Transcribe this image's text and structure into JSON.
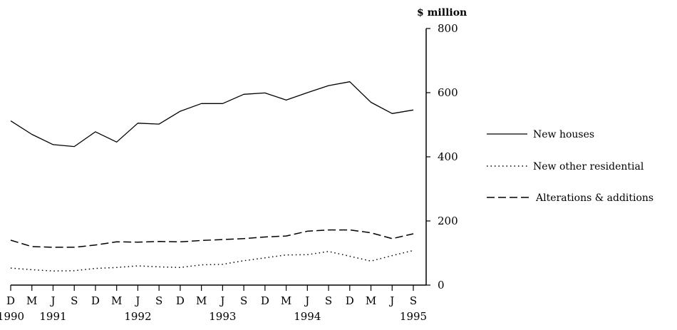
{
  "chart_data": {
    "type": "line",
    "ylabel": "$ million",
    "ylim": [
      0,
      800
    ],
    "yticks": [
      "0",
      "200",
      "400",
      "600",
      "800"
    ],
    "categories": [
      "D",
      "M",
      "J",
      "S",
      "D",
      "M",
      "J",
      "S",
      "D",
      "M",
      "J",
      "S",
      "D",
      "M",
      "J",
      "S",
      "D",
      "M",
      "J",
      "S"
    ],
    "year_labels": [
      {
        "index": 0,
        "label": "1990"
      },
      {
        "index": 2,
        "label": "1991"
      },
      {
        "index": 6,
        "label": "1992"
      },
      {
        "index": 10,
        "label": "1993"
      },
      {
        "index": 14,
        "label": "1994"
      },
      {
        "index": 19,
        "label": "1995"
      }
    ],
    "grid": false,
    "legend_position": "right",
    "series": [
      {
        "name": "New houses",
        "style": "solid",
        "values": [
          512,
          470,
          438,
          432,
          478,
          446,
          505,
          502,
          542,
          566,
          566,
          595,
          599,
          577,
          600,
          622,
          634,
          570,
          535,
          546
        ]
      },
      {
        "name": "New other residential",
        "style": "dotted",
        "values": [
          53,
          48,
          44,
          45,
          52,
          55,
          60,
          57,
          55,
          63,
          65,
          76,
          85,
          94,
          95,
          105,
          90,
          75,
          92,
          108
        ]
      },
      {
        "name": "Alterations & additions",
        "style": "dashed",
        "values": [
          140,
          120,
          118,
          118,
          125,
          135,
          134,
          136,
          135,
          139,
          142,
          145,
          150,
          153,
          168,
          172,
          172,
          163,
          145,
          160
        ]
      }
    ]
  }
}
